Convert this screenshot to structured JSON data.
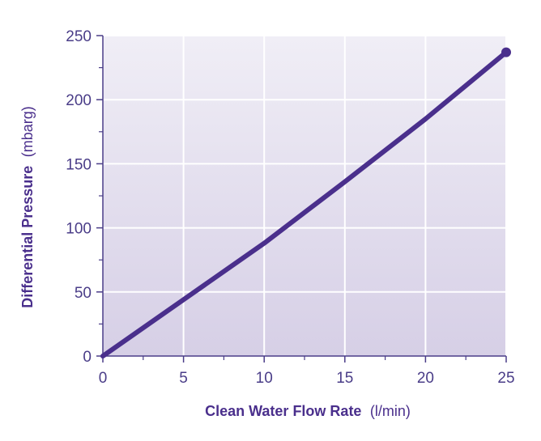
{
  "chart_data": {
    "type": "line",
    "title": "",
    "xlabel": {
      "main": "Clean Water Flow Rate",
      "unit": "(l/min)"
    },
    "ylabel": {
      "main": "Differential Pressure",
      "unit": "(mbarg)"
    },
    "xlim": [
      0,
      25
    ],
    "ylim": [
      0,
      250
    ],
    "x_ticks": [
      0,
      5,
      10,
      15,
      20,
      25
    ],
    "y_ticks": [
      0,
      50,
      100,
      150,
      200,
      250
    ],
    "x_tick_labels": [
      "0",
      "5",
      "10",
      "15",
      "20",
      "25"
    ],
    "y_tick_labels": [
      "0",
      "50",
      "100",
      "150",
      "200",
      "250"
    ],
    "grid": true,
    "legend": "none",
    "series": [
      {
        "x": [
          0,
          5,
          10,
          15,
          20,
          25
        ],
        "y": [
          0,
          44,
          88,
          136,
          185,
          237
        ],
        "end_marker": true
      }
    ],
    "colors": {
      "line": "#4a2f8c",
      "axis": "#4a3d88",
      "grid": "#ffffff",
      "plot_bg_top": "#f0eef6",
      "plot_bg_bottom": "#d6cfe6"
    }
  }
}
